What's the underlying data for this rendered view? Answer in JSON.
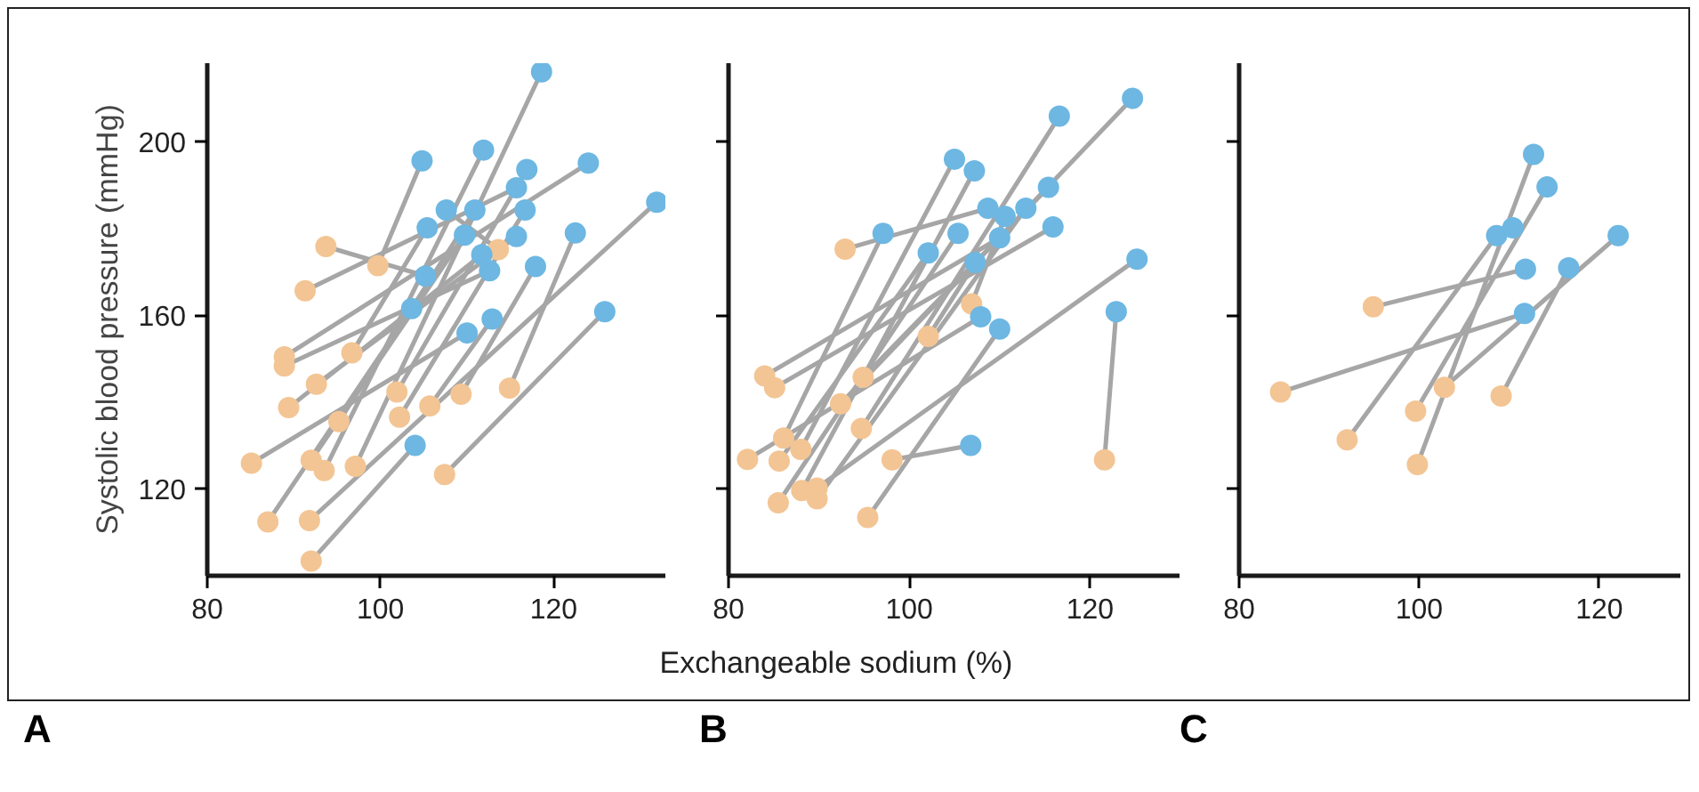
{
  "chart_data": [
    {
      "type": "line",
      "title": "A",
      "ylabel": "Systolic blood pressure (mmHg)",
      "marker": "circle",
      "xlim": [
        80,
        133
      ],
      "ylim": [
        100,
        218
      ],
      "xticks": [
        80,
        100,
        120
      ],
      "yticks": [
        120,
        160,
        200
      ],
      "series": [
        {
          "x": [
            93.7,
            105.2
          ],
          "values": [
            175.8,
            169
          ],
          "color": "#a6a6a6",
          "colors": [
            "#f3c594",
            "#6db7e2"
          ]
        },
        {
          "x": [
            99.7,
            104.8
          ],
          "values": [
            171.4,
            195.5
          ],
          "color": "#a6a6a6",
          "colors": [
            "#f3c594",
            "#6db7e2"
          ]
        },
        {
          "x": [
            113.6,
            107.6
          ],
          "values": [
            175.1,
            184.2
          ],
          "color": "#a6a6a6",
          "colors": [
            "#f3c594",
            "#6db7e2"
          ]
        },
        {
          "x": [
            91.3,
            115.7
          ],
          "values": [
            165.6,
            189.3
          ],
          "color": "#a6a6a6",
          "colors": [
            "#f3c594",
            "#6db7e2"
          ]
        },
        {
          "x": [
            88.9,
            124.0
          ],
          "values": [
            150.4,
            195.0
          ],
          "color": "#a6a6a6",
          "colors": [
            "#f3c594",
            "#6db7e2"
          ]
        },
        {
          "x": [
            88.9,
            112.6
          ],
          "values": [
            148.3,
            170.2
          ],
          "color": "#a6a6a6",
          "colors": [
            "#f3c594",
            "#6db7e2"
          ]
        },
        {
          "x": [
            96.7,
            105.4
          ],
          "values": [
            151.3,
            180.1
          ],
          "color": "#a6a6a6",
          "colors": [
            "#f3c594",
            "#6db7e2"
          ]
        },
        {
          "x": [
            92.6,
            115.7
          ],
          "values": [
            144.1,
            178.1
          ],
          "color": "#a6a6a6",
          "colors": [
            "#f3c594",
            "#6db7e2"
          ]
        },
        {
          "x": [
            89.4,
            111.7
          ],
          "values": [
            138.7,
            173.9
          ],
          "color": "#a6a6a6",
          "colors": [
            "#f3c594",
            "#6db7e2"
          ]
        },
        {
          "x": [
            101.9,
            116.9
          ],
          "values": [
            142.3,
            193.5
          ],
          "color": "#a6a6a6",
          "colors": [
            "#f3c594",
            "#6db7e2"
          ]
        },
        {
          "x": [
            105.7,
            112.9
          ],
          "values": [
            139.1,
            159.1
          ],
          "color": "#a6a6a6",
          "colors": [
            "#f3c594",
            "#6db7e2"
          ]
        },
        {
          "x": [
            109.3,
            117.9
          ],
          "values": [
            141.8,
            171.2
          ],
          "color": "#a6a6a6",
          "colors": [
            "#f3c594",
            "#6db7e2"
          ]
        },
        {
          "x": [
            114.9,
            122.5
          ],
          "values": [
            143.2,
            178.9
          ],
          "color": "#a6a6a6",
          "colors": [
            "#f3c594",
            "#6db7e2"
          ]
        },
        {
          "x": [
            95.2,
            110.9
          ],
          "values": [
            135.5,
            184.2
          ],
          "color": "#a6a6a6",
          "colors": [
            "#f3c594",
            "#6db7e2"
          ]
        },
        {
          "x": [
            102.2,
            116.7
          ],
          "values": [
            136.5,
            184.2
          ],
          "color": "#a6a6a6",
          "colors": [
            "#f3c594",
            "#6db7e2"
          ]
        },
        {
          "x": [
            85.1,
            110.0
          ],
          "values": [
            125.9,
            155.9
          ],
          "color": "#a6a6a6",
          "colors": [
            "#f3c594",
            "#6db7e2"
          ]
        },
        {
          "x": [
            92.0,
            109.7
          ],
          "values": [
            126.6,
            178.4
          ],
          "color": "#a6a6a6",
          "colors": [
            "#f3c594",
            "#6db7e2"
          ]
        },
        {
          "x": [
            93.5,
            111.9
          ],
          "values": [
            124.2,
            198
          ],
          "color": "#a6a6a6",
          "colors": [
            "#f3c594",
            "#6db7e2"
          ]
        },
        {
          "x": [
            97.1,
            118.6
          ],
          "values": [
            125.2,
            216
          ],
          "color": "#a6a6a6",
          "colors": [
            "#f3c594",
            "#6db7e2"
          ]
        },
        {
          "x": [
            107.4,
            125.9
          ],
          "values": [
            123.3,
            160.8
          ],
          "color": "#a6a6a6",
          "colors": [
            "#f3c594",
            "#6db7e2"
          ]
        },
        {
          "x": [
            87.0,
            103.6
          ],
          "values": [
            112.4,
            161.5
          ],
          "color": "#a6a6a6",
          "colors": [
            "#f3c594",
            "#6db7e2"
          ]
        },
        {
          "x": [
            91.8,
            131.9
          ],
          "values": [
            112.7,
            186
          ],
          "color": "#a6a6a6",
          "colors": [
            "#f3c594",
            "#6db7e2"
          ]
        },
        {
          "x": [
            92.0,
            104
          ],
          "values": [
            103.4,
            130
          ],
          "color": "#a6a6a6",
          "colors": [
            "#f3c594",
            "#6db7e2"
          ]
        }
      ]
    },
    {
      "type": "line",
      "title": "B",
      "xlabel": "Exchangeable sodium (%)",
      "marker": "circle",
      "tick_labels": "x",
      "xlim": [
        80,
        130
      ],
      "ylim": [
        100,
        218
      ],
      "xticks": [
        80,
        100,
        120
      ],
      "yticks": [
        120,
        160,
        200
      ],
      "series": [
        {
          "x": [
            121.6,
            122.9
          ],
          "values": [
            126.7,
            160.8
          ],
          "color": "#a6a6a6",
          "colors": [
            "#f3c594",
            "#6db7e2"
          ]
        },
        {
          "x": [
            98.1,
            106.8
          ],
          "values": [
            126.7,
            130
          ],
          "color": "#a6a6a6",
          "colors": [
            "#f3c594",
            "#6db7e2"
          ]
        },
        {
          "x": [
            95.4,
            110
          ],
          "values": [
            113.4,
            156.8
          ],
          "color": "#a6a6a6",
          "colors": [
            "#f3c594",
            "#6db7e2"
          ]
        },
        {
          "x": [
            92.9,
            108.7
          ],
          "values": [
            175.2,
            184.6
          ],
          "color": "#a6a6a6",
          "colors": [
            "#f3c594",
            "#6db7e2"
          ]
        },
        {
          "x": [
            86.1,
            97.1
          ],
          "values": [
            131.7,
            178.8
          ],
          "color": "#a6a6a6",
          "colors": [
            "#f3c594",
            "#6db7e2"
          ]
        },
        {
          "x": [
            106.9,
            110.6
          ],
          "values": [
            162.6,
            182.7
          ],
          "color": "#a6a6a6",
          "colors": [
            "#f3c594",
            "#6db7e2"
          ]
        },
        {
          "x": [
            82.1,
            107.9
          ],
          "values": [
            126.8,
            159.6
          ],
          "color": "#a6a6a6",
          "colors": [
            "#f3c594",
            "#6db7e2"
          ]
        },
        {
          "x": [
            89.8,
            125.2
          ],
          "values": [
            120.2,
            172.9
          ],
          "color": "#a6a6a6",
          "colors": [
            "#f3c594",
            "#6db7e2"
          ]
        },
        {
          "x": [
            84.0,
            110
          ],
          "values": [
            146,
            177.8
          ],
          "color": "#a6a6a6",
          "colors": [
            "#f3c594",
            "#6db7e2"
          ]
        },
        {
          "x": [
            85.1,
            115.9
          ],
          "values": [
            143.3,
            180.3
          ],
          "color": "#a6a6a6",
          "colors": [
            "#f3c594",
            "#6db7e2"
          ]
        },
        {
          "x": [
            92.4,
            124.7
          ],
          "values": [
            139.6,
            209.9
          ],
          "color": "#a6a6a6",
          "colors": [
            "#f3c594",
            "#6db7e2"
          ]
        },
        {
          "x": [
            102.1,
            107.3
          ],
          "values": [
            155.1,
            172.1
          ],
          "color": "#a6a6a6",
          "colors": [
            "#f3c594",
            "#6db7e2"
          ]
        },
        {
          "x": [
            94.9,
            115.4
          ],
          "values": [
            145.7,
            189.4
          ],
          "color": "#a6a6a6",
          "colors": [
            "#f3c594",
            "#6db7e2"
          ]
        },
        {
          "x": [
            94.7,
            116.6
          ],
          "values": [
            133.9,
            205.8
          ],
          "color": "#a6a6a6",
          "colors": [
            "#f3c594",
            "#6db7e2"
          ]
        },
        {
          "x": [
            88.0,
            105
          ],
          "values": [
            129.1,
            195.9
          ],
          "color": "#a6a6a6",
          "colors": [
            "#f3c594",
            "#6db7e2"
          ]
        },
        {
          "x": [
            85.6,
            102.1
          ],
          "values": [
            126.4,
            174.3
          ],
          "color": "#a6a6a6",
          "colors": [
            "#f3c594",
            "#6db7e2"
          ]
        },
        {
          "x": [
            88.1,
            107.2
          ],
          "values": [
            119.6,
            193.2
          ],
          "color": "#a6a6a6",
          "colors": [
            "#f3c594",
            "#6db7e2"
          ]
        },
        {
          "x": [
            89.8,
            112.9
          ],
          "values": [
            117.7,
            184.6
          ],
          "color": "#a6a6a6",
          "colors": [
            "#f3c594",
            "#6db7e2"
          ]
        },
        {
          "x": [
            85.5,
            105.4
          ],
          "values": [
            116.8,
            178.8
          ],
          "color": "#a6a6a6",
          "colors": [
            "#f3c594",
            "#6db7e2"
          ]
        }
      ]
    },
    {
      "type": "line",
      "title": "C",
      "marker": "circle",
      "tick_labels": "x",
      "xlim": [
        80,
        129
      ],
      "ylim": [
        100,
        218
      ],
      "xticks": [
        80,
        100,
        120
      ],
      "yticks": [
        120,
        160,
        200
      ],
      "series": [
        {
          "x": [
            94.9,
            111.8
          ],
          "values": [
            161.9,
            170.6
          ],
          "color": "#a6a6a6",
          "colors": [
            "#f3c594",
            "#6db7e2"
          ]
        },
        {
          "x": [
            84.6,
            111.7
          ],
          "values": [
            142.3,
            160.4
          ],
          "color": "#a6a6a6",
          "colors": [
            "#f3c594",
            "#6db7e2"
          ]
        },
        {
          "x": [
            102.8,
            122.1
          ],
          "values": [
            143.4,
            178.3
          ],
          "color": "#a6a6a6",
          "colors": [
            "#f3c594",
            "#6db7e2"
          ]
        },
        {
          "x": [
            109.1,
            116.6
          ],
          "values": [
            141.4,
            170.9
          ],
          "color": "#a6a6a6",
          "colors": [
            "#f3c594",
            "#6db7e2"
          ]
        },
        {
          "x": [
            99.6,
            114.2
          ],
          "values": [
            137.9,
            189.5
          ],
          "color": "#a6a6a6",
          "colors": [
            "#f3c594",
            "#6db7e2"
          ]
        },
        {
          "x": [
            92,
            108.6
          ],
          "values": [
            131.3,
            178.3
          ],
          "color": "#a6a6a6",
          "colors": [
            "#f3c594",
            "#6db7e2"
          ]
        },
        {
          "x": [
            99.8,
            112.7
          ],
          "values": [
            125.6,
            197
          ],
          "color": "#a6a6a6",
          "colors": [
            "#f3c594",
            "#6db7e2"
          ]
        },
        {
          "x": [
            110.4
          ],
          "values": [
            180.1
          ],
          "color": "#a6a6a6",
          "colors": [
            "#6db7e2"
          ]
        }
      ]
    }
  ]
}
